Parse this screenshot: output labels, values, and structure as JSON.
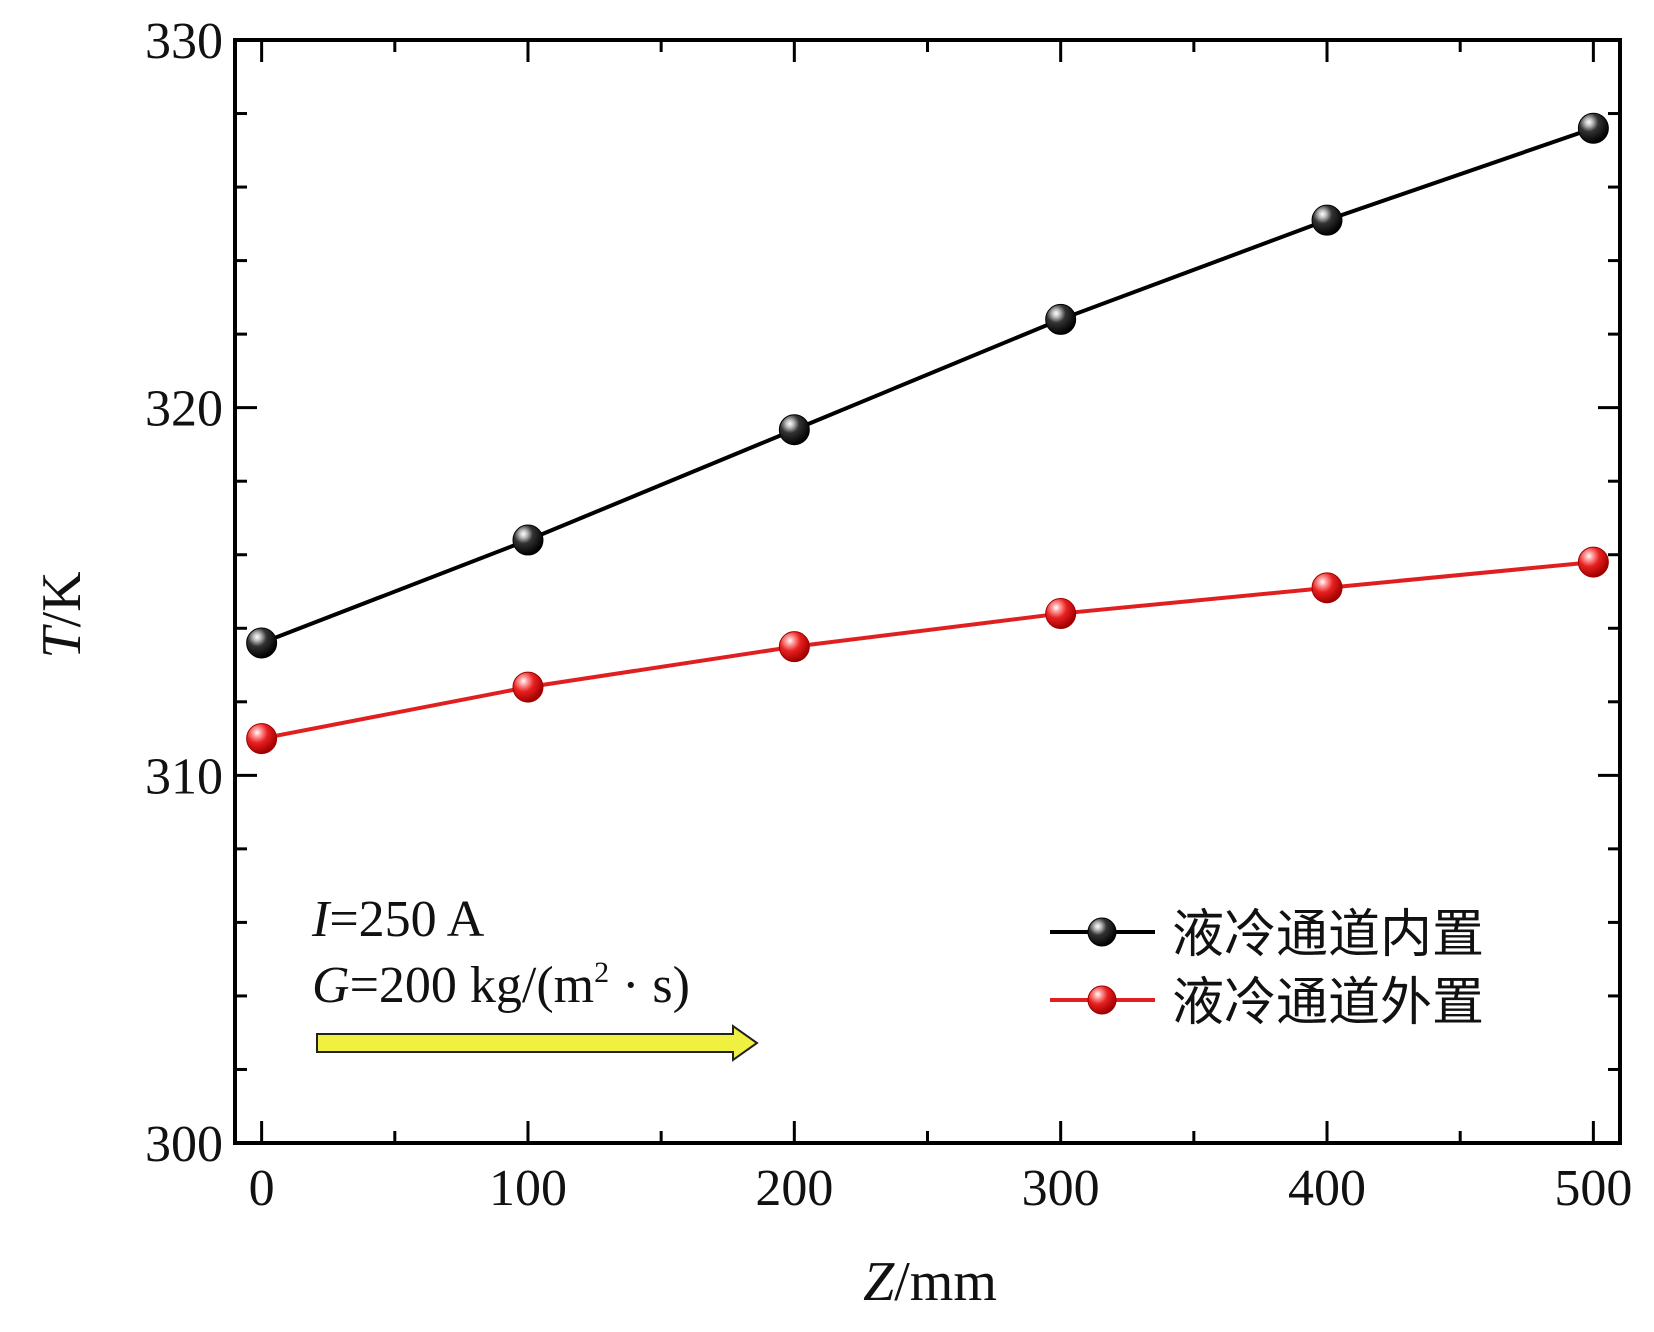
{
  "chart_data": {
    "type": "line",
    "x": [
      0,
      100,
      200,
      300,
      400,
      500
    ],
    "series": [
      {
        "name": "液冷通道内置",
        "color": "#000000",
        "values": [
          313.6,
          316.4,
          319.4,
          322.4,
          325.1,
          327.6
        ]
      },
      {
        "name": "液冷通道外置",
        "color": "#e02020",
        "values": [
          311.0,
          312.4,
          313.5,
          314.4,
          315.1,
          315.8
        ]
      }
    ],
    "xlabel": {
      "var": "Z",
      "unit": "/mm"
    },
    "ylabel": {
      "var": "T",
      "unit": "/K"
    },
    "xlim": [
      -10,
      510
    ],
    "ylim": [
      300,
      330
    ],
    "xticks": [
      "0",
      "100",
      "200",
      "300",
      "400",
      "500"
    ],
    "yticks": [
      "300",
      "310",
      "320",
      "330"
    ],
    "legend_position": "bottom-right",
    "annotations": {
      "current": {
        "var": "I",
        "text": "=250 A"
      },
      "flux": {
        "var": "G",
        "text": "=200 kg/(m",
        "sup": "2",
        "tail": " · s)"
      },
      "arrow_color": "#f0f040"
    }
  }
}
